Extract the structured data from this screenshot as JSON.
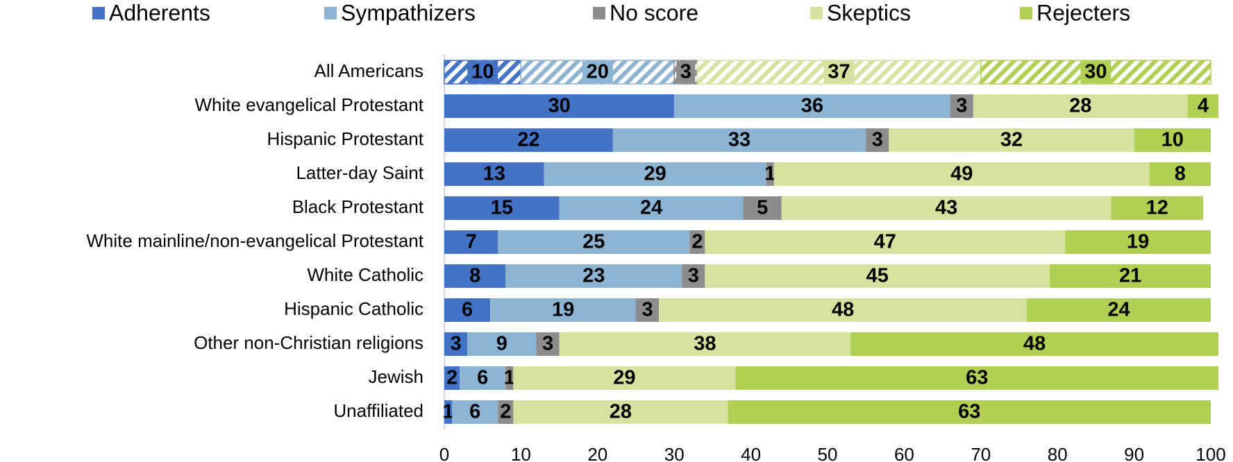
{
  "chart_data": {
    "type": "stacked_bar_horizontal",
    "categories": [
      "All Americans",
      "White evangelical Protestant",
      "Hispanic Protestant",
      "Latter-day Saint",
      "Black Protestant",
      "White mainline/non-evangelical Protestant",
      "White Catholic",
      "Hispanic Catholic",
      "Other non-Christian religions",
      "Jewish",
      "Unaffiliated"
    ],
    "series": [
      {
        "name": "Adherents",
        "color": "#4472c4",
        "label_color": "#ffffff",
        "values": [
          10,
          30,
          22,
          13,
          15,
          7,
          8,
          6,
          3,
          2,
          1
        ]
      },
      {
        "name": "Sympathizers",
        "color": "#8db4d3",
        "label_color": "#000000",
        "values": [
          20,
          36,
          33,
          29,
          24,
          25,
          23,
          19,
          9,
          6,
          6
        ]
      },
      {
        "name": "No score",
        "color": "#8c8c8c",
        "label_color": "#000000",
        "values": [
          3,
          3,
          3,
          1,
          5,
          2,
          3,
          3,
          3,
          1,
          2
        ]
      },
      {
        "name": "Skeptics",
        "color": "#d6e3a0",
        "label_color": "#000000",
        "values": [
          37,
          28,
          32,
          49,
          43,
          47,
          45,
          48,
          38,
          29,
          28
        ]
      },
      {
        "name": "Rejecters",
        "color": "#b2cf55",
        "label_color": "#000000",
        "values": [
          30,
          4,
          10,
          8,
          12,
          19,
          21,
          24,
          48,
          63,
          63
        ]
      }
    ],
    "hatched_rows": [
      0
    ],
    "xlim": [
      0,
      100
    ],
    "xticks": [
      0,
      10,
      20,
      30,
      40,
      50,
      60,
      70,
      80,
      90,
      100
    ],
    "legend": "top",
    "grid": false
  }
}
